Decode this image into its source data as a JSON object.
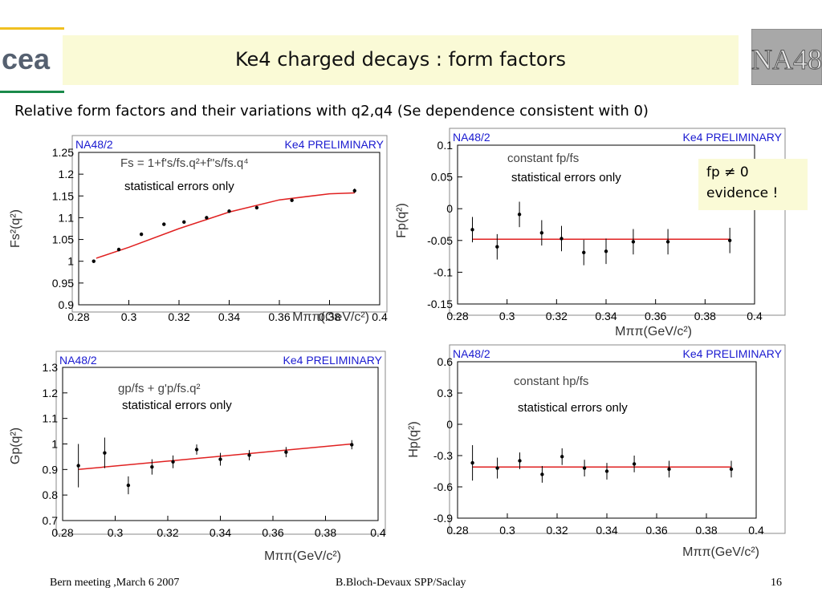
{
  "slide": {
    "title": "Ke4 charged decays : form factors",
    "subtitle": "Relative form factors and their variations with q2,q4 (Se dependence consistent with 0)",
    "note_line1": "fp ≠ 0",
    "note_line2": "evidence !",
    "logo_left": "cea",
    "logo_right": "NA48",
    "footer_left": "Bern meeting ,March 6 2007",
    "footer_center": "B.Bloch-Devaux SPP/Saclay",
    "footer_right": "16",
    "colors": {
      "title_bg": "#fafad6",
      "fit_line": "#e02020",
      "panel_label": "#1a1ad0",
      "logo_yellow": "#f0c020",
      "logo_green": "#1a8a4a"
    }
  },
  "chart_data": [
    {
      "type": "scatter",
      "label_left": "NA48/2",
      "label_right": "Ke4 PRELIMINARY",
      "ylabel": "Fs²(q²)",
      "xlabel": "Mππ(GeV/c²)",
      "formula": "Fs = 1+f's/fs.q²+f''s/fs.q⁴",
      "note": "statistical errors only",
      "xlim": [
        0.28,
        0.4
      ],
      "ylim": [
        0.9,
        1.25
      ],
      "xticks": [
        "0.28",
        "0.3",
        "0.32",
        "0.34",
        "0.36",
        "0.38",
        "0.4"
      ],
      "yticks": [
        "0.9",
        "0.95",
        "1",
        "1.05",
        "1.1",
        "1.15",
        "1.2",
        "1.25"
      ],
      "x": [
        0.286,
        0.296,
        0.305,
        0.314,
        0.322,
        0.331,
        0.34,
        0.351,
        0.365,
        0.39
      ],
      "y": [
        1.0,
        1.027,
        1.062,
        1.085,
        1.09,
        1.1,
        1.115,
        1.123,
        1.14,
        1.162
      ],
      "err": [
        0.004,
        0.004,
        0.004,
        0.004,
        0.004,
        0.004,
        0.004,
        0.004,
        0.004,
        0.005
      ],
      "fit": {
        "x": [
          0.287,
          0.3,
          0.32,
          0.34,
          0.36,
          0.38,
          0.39
        ],
        "y": [
          1.007,
          1.032,
          1.075,
          1.113,
          1.141,
          1.155,
          1.157
        ]
      }
    },
    {
      "type": "scatter",
      "label_left": "NA48/2",
      "label_right": "Ke4 PRELIMINARY",
      "ylabel": "Fp(q²)",
      "xlabel": "Mππ(GeV/c²)",
      "formula": "constant fp/fs",
      "note": "statistical errors only",
      "xlim": [
        0.28,
        0.4
      ],
      "ylim": [
        -0.15,
        0.1
      ],
      "xticks": [
        "0.28",
        "0.3",
        "0.32",
        "0.34",
        "0.36",
        "0.38",
        "0.4"
      ],
      "yticks": [
        "-0.15",
        "-0.1",
        "-0.05",
        "0",
        "0.05",
        "0.1"
      ],
      "x": [
        0.286,
        0.296,
        0.305,
        0.314,
        0.322,
        0.331,
        0.34,
        0.351,
        0.365,
        0.39
      ],
      "y": [
        -0.033,
        -0.06,
        -0.009,
        -0.038,
        -0.047,
        -0.069,
        -0.067,
        -0.052,
        -0.052,
        -0.05
      ],
      "err": [
        0.02,
        0.02,
        0.02,
        0.02,
        0.02,
        0.02,
        0.02,
        0.02,
        0.02,
        0.02
      ],
      "fit": {
        "x": [
          0.286,
          0.39
        ],
        "y": [
          -0.048,
          -0.048
        ]
      }
    },
    {
      "type": "scatter",
      "label_left": "NA48/2",
      "label_right": "Ke4 PRELIMINARY",
      "ylabel": "Gp(q²)",
      "xlabel": "Mππ(GeV/c²)",
      "formula": "gp/fs + g'p/fs.q²",
      "note": "statistical errors only",
      "xlim": [
        0.28,
        0.4
      ],
      "ylim": [
        0.7,
        1.3
      ],
      "xticks": [
        "0.28",
        "0.3",
        "0.32",
        "0.34",
        "0.36",
        "0.38",
        "0.4"
      ],
      "yticks": [
        "0.7",
        "0.8",
        "0.9",
        "1",
        "1.1",
        "1.2",
        "1.3"
      ],
      "x": [
        0.286,
        0.296,
        0.305,
        0.314,
        0.322,
        0.331,
        0.34,
        0.351,
        0.365,
        0.39
      ],
      "y": [
        0.915,
        0.965,
        0.838,
        0.91,
        0.93,
        0.978,
        0.94,
        0.956,
        0.968,
        0.997
      ],
      "err": [
        0.085,
        0.06,
        0.035,
        0.03,
        0.025,
        0.02,
        0.025,
        0.02,
        0.02,
        0.018
      ],
      "fit": {
        "x": [
          0.286,
          0.39
        ],
        "y": [
          0.9,
          1.0
        ]
      }
    },
    {
      "type": "scatter",
      "label_left": "NA48/2",
      "label_right": "Ke4 PRELIMINARY",
      "ylabel": "Hp(q²)",
      "xlabel": "Mππ(GeV/c²)",
      "formula": "constant hp/fs",
      "note": "statistical errors only",
      "xlim": [
        0.28,
        0.4
      ],
      "ylim": [
        -0.9,
        0.6
      ],
      "xticks": [
        "0.28",
        "0.3",
        "0.32",
        "0.34",
        "0.36",
        "0.38",
        "0.4"
      ],
      "yticks": [
        "-0.9",
        "-0.6",
        "-0.3",
        "0",
        "0.3",
        "0.6"
      ],
      "x": [
        0.286,
        0.296,
        0.305,
        0.314,
        0.322,
        0.331,
        0.34,
        0.351,
        0.365,
        0.39
      ],
      "y": [
        -0.37,
        -0.42,
        -0.35,
        -0.48,
        -0.31,
        -0.42,
        -0.45,
        -0.38,
        -0.43,
        -0.43
      ],
      "err": [
        0.17,
        0.1,
        0.08,
        0.08,
        0.08,
        0.08,
        0.08,
        0.08,
        0.08,
        0.08
      ],
      "fit": {
        "x": [
          0.286,
          0.39
        ],
        "y": [
          -0.41,
          -0.41
        ]
      }
    }
  ]
}
